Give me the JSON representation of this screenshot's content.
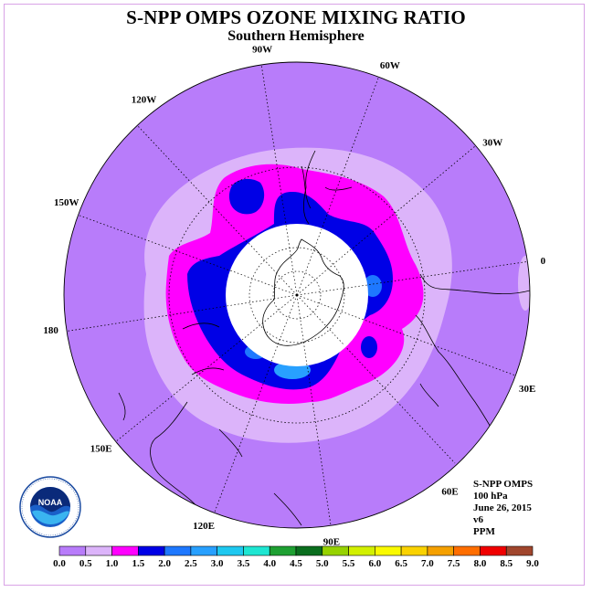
{
  "title": "S-NPP OMPS OZONE MIXING RATIO",
  "subtitle": "Southern Hemisphere",
  "longitude_labels": [
    {
      "label": "0",
      "lon": 0
    },
    {
      "label": "30E",
      "lon": 30
    },
    {
      "label": "60E",
      "lon": 60
    },
    {
      "label": "90E",
      "lon": 90
    },
    {
      "label": "120E",
      "lon": 120
    },
    {
      "label": "150E",
      "lon": 150
    },
    {
      "label": "180",
      "lon": 180
    },
    {
      "label": "150W",
      "lon": 210
    },
    {
      "label": "120W",
      "lon": 240
    },
    {
      "label": "90W",
      "lon": 270
    },
    {
      "label": "60W",
      "lon": 300
    },
    {
      "label": "30W",
      "lon": 330
    }
  ],
  "info": {
    "instrument": "S-NPP OMPS",
    "level": "100 hPa",
    "date": "June 26, 2015",
    "version": "v6",
    "units": "PPM"
  },
  "colorbar": {
    "ticks": [
      "0.0",
      "0.5",
      "1.0",
      "1.5",
      "2.0",
      "2.5",
      "3.0",
      "3.5",
      "4.0",
      "4.5",
      "5.0",
      "5.5",
      "6.0",
      "6.5",
      "7.0",
      "7.5",
      "8.0",
      "8.5",
      "9.0"
    ],
    "colors": [
      "#b87cfa",
      "#dcb4fa",
      "#ff00ff",
      "#0000e6",
      "#1e78ff",
      "#28a0ff",
      "#1ec8f0",
      "#1ee6d2",
      "#1ea032",
      "#0a6e1e",
      "#96d200",
      "#d2f000",
      "#fafa00",
      "#fad200",
      "#f5a000",
      "#ff6e00",
      "#f00000",
      "#a0462d"
    ]
  },
  "logo_text": "NOAA",
  "colors": {
    "background_field": "#b87cfa",
    "pole_mask": "#ffffff",
    "grid": "#000000"
  }
}
